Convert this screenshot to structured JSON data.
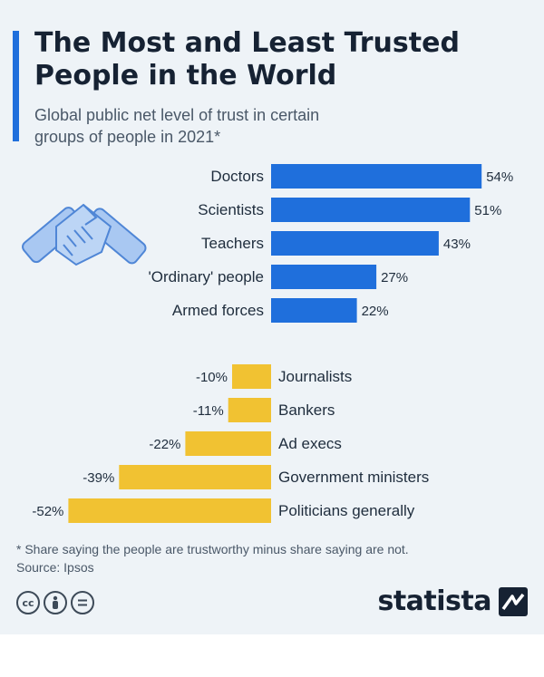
{
  "title": "The Most and Least Trusted\nPeople in the World",
  "subtitle": "Global public net level of trust in certain\ngroups of people in 2021*",
  "footnote": "* Share saying the people are trustworthy minus share saying are not.",
  "source": "Source: Ipsos",
  "brand": "statista",
  "colors": {
    "positive": "#1f6fdc",
    "negative": "#f1c232",
    "accent": "#1f6fdc"
  },
  "icons": {
    "illustration": "handshake-icon",
    "license": [
      "cc-icon",
      "by-icon",
      "nd-icon"
    ],
    "logo": "statista-logo-icon"
  },
  "chart_data": {
    "type": "bar",
    "orientation": "horizontal",
    "unit": "%",
    "series": [
      {
        "categories": [
          "Doctors",
          "Scientists",
          "Teachers",
          "'Ordinary' people",
          "Armed forces"
        ],
        "values": [
          54,
          51,
          43,
          27,
          22
        ],
        "labels": [
          "54%",
          "51%",
          "43%",
          "27%",
          "22%"
        ]
      },
      {
        "categories": [
          "Journalists",
          "Bankers",
          "Ad execs",
          "Government ministers",
          "Politicians generally"
        ],
        "values": [
          -10,
          -11,
          -22,
          -39,
          -52
        ],
        "labels": [
          "-10%",
          "-11%",
          "-22%",
          "-39%",
          "-52%"
        ]
      }
    ]
  }
}
